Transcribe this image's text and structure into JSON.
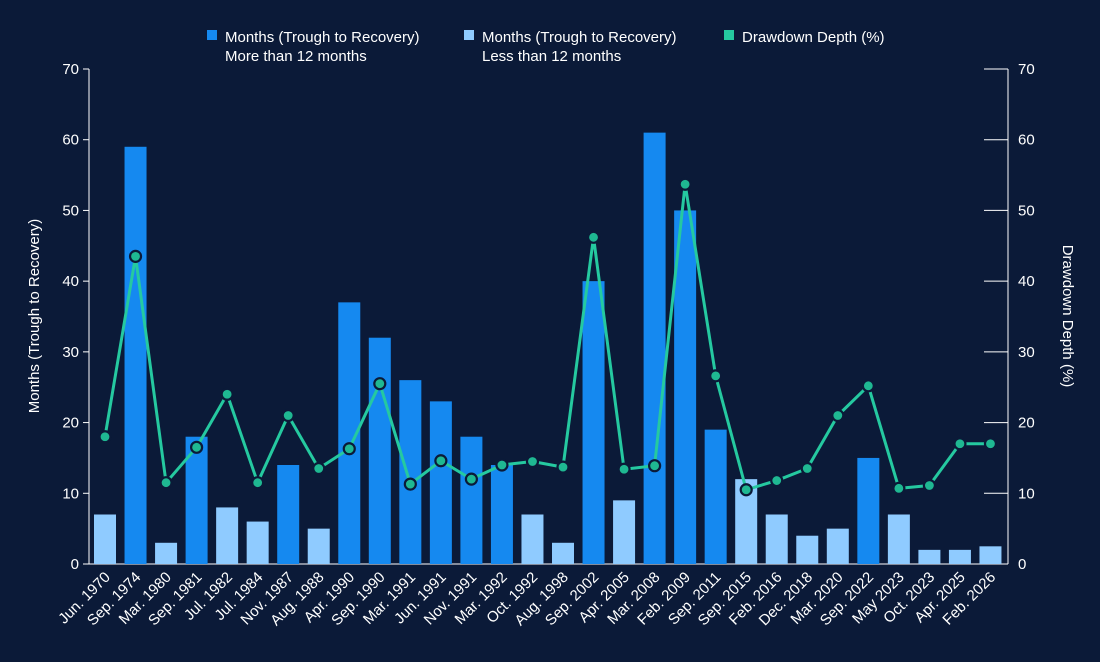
{
  "colors": {
    "background": "#0b1a38",
    "bar_more": "#1589f0",
    "bar_less": "#8fcbff",
    "line": "#25c9a0",
    "marker_fill": "#1fb892",
    "marker_stroke": "#0b1a38",
    "axis": "#ffffff"
  },
  "legend": [
    {
      "key": "more",
      "line1": "Months (Trough to Recovery)",
      "line2": "More than 12 months",
      "symbol": "square",
      "color": "#1589f0"
    },
    {
      "key": "less",
      "line1": "Months (Trough to Recovery)",
      "line2": "Less than 12 months",
      "symbol": "square",
      "color": "#8fcbff"
    },
    {
      "key": "line",
      "line1": "Drawdown Depth (%)",
      "line2": "",
      "symbol": "square",
      "color": "#25c9a0"
    }
  ],
  "chart_data": {
    "type": "bar",
    "combo": "bar + line (dual axis)",
    "categories": [
      "Jun. 1970",
      "Sep. 1974",
      "Mar. 1980",
      "Sep. 1981",
      "Jul. 1982",
      "Jul. 1984",
      "Nov. 1987",
      "Aug. 1988",
      "Apr. 1990",
      "Sep. 1990",
      "Mar. 1991",
      "Jun. 1991",
      "Nov. 1991",
      "Mar. 1992",
      "Oct. 1992",
      "Aug. 1998",
      "Sep. 2002",
      "Apr. 2005",
      "Mar. 2008",
      "Feb. 2009",
      "Sep. 2011",
      "Sep. 2015",
      "Feb. 2016",
      "Dec. 2018",
      "Mar. 2020",
      "Sep. 2022",
      "May 2023",
      "Oct. 2023",
      "Apr. 2025",
      "Feb. 2026"
    ],
    "series": [
      {
        "name": "Months (Trough to Recovery)",
        "axis": "left",
        "kind": "bar",
        "values": [
          7,
          59,
          3,
          18,
          8,
          6,
          14,
          5,
          37,
          32,
          26,
          23,
          18,
          14,
          7,
          3,
          40,
          9,
          61,
          50,
          19,
          12,
          7,
          4,
          5,
          15,
          7,
          2,
          2,
          2.5
        ]
      },
      {
        "name": "Drawdown Depth (%)",
        "axis": "right",
        "kind": "line",
        "values": [
          18,
          43.5,
          11.5,
          16.5,
          24,
          11.5,
          21,
          13.5,
          16.3,
          25.5,
          11.3,
          14.6,
          12,
          14,
          14.5,
          13.7,
          46.2,
          13.4,
          13.9,
          53.7,
          26.6,
          10.5,
          11.8,
          13.5,
          21,
          25.2,
          10.7,
          11.1,
          17,
          17
        ]
      }
    ],
    "xlabel": "",
    "ylabel": "Months (Trough to Recovery)",
    "y2label": "Drawdown Depth (%)",
    "ylim": [
      0,
      70
    ],
    "y2lim": [
      0,
      70
    ],
    "yticks": [
      0,
      10,
      20,
      30,
      40,
      50,
      60,
      70
    ],
    "y2ticks": [
      0,
      10,
      20,
      30,
      40,
      50,
      60,
      70
    ],
    "threshold_months": 12,
    "grid": false,
    "legend_position": "top-center"
  }
}
